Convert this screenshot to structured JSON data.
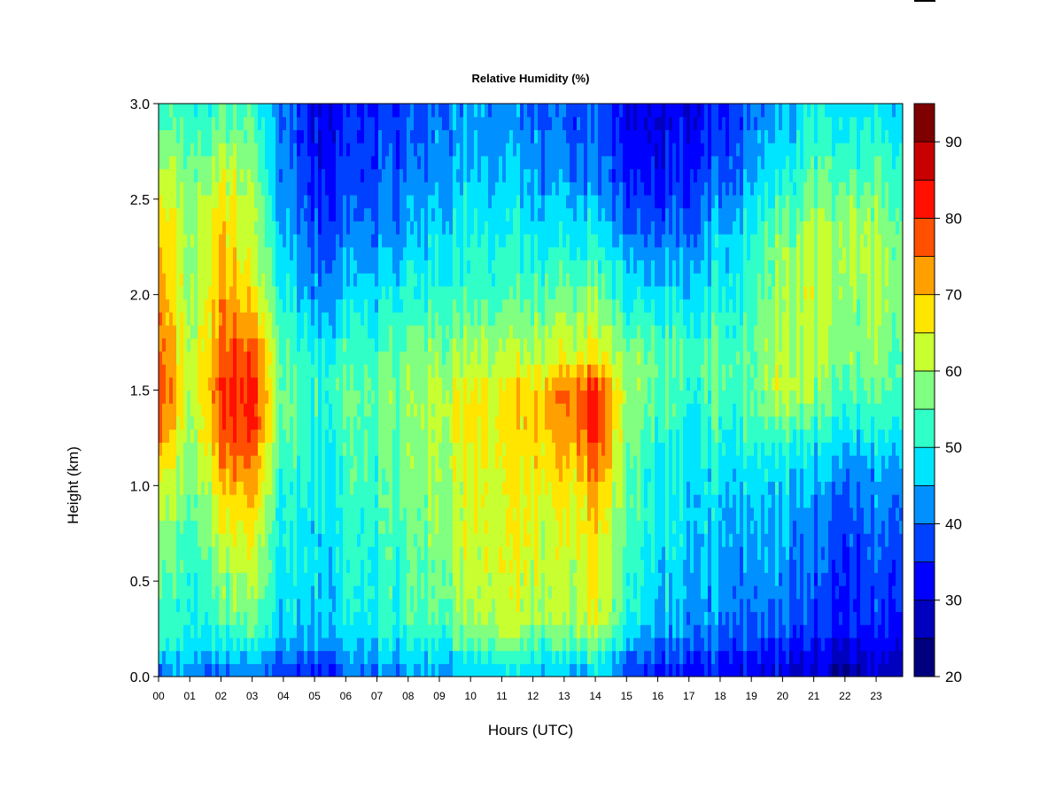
{
  "chart_data": {
    "type": "heatmap",
    "title": "Relative Humidity (%)",
    "xlabel": "Hours (UTC)",
    "ylabel": "Height (km)",
    "xlim": [
      0,
      23.85
    ],
    "ylim": [
      0.0,
      3.0
    ],
    "x_ticks": [
      0,
      1,
      2,
      3,
      4,
      5,
      6,
      7,
      8,
      9,
      10,
      11,
      12,
      13,
      14,
      15,
      16,
      17,
      18,
      19,
      20,
      21,
      22,
      23
    ],
    "x_tick_labels": [
      "00",
      "01",
      "02",
      "03",
      "04",
      "05",
      "06",
      "07",
      "08",
      "09",
      "10",
      "11",
      "12",
      "13",
      "14",
      "15",
      "16",
      "17",
      "18",
      "19",
      "20",
      "21",
      "22",
      "23"
    ],
    "y_ticks": [
      0.0,
      0.5,
      1.0,
      1.5,
      2.0,
      2.5,
      3.0
    ],
    "y_tick_labels": [
      "0.0",
      "0.5",
      "1.0",
      "1.5",
      "2.0",
      "2.5",
      "3.0"
    ],
    "colorbar": {
      "levels": [
        20,
        25,
        30,
        35,
        40,
        45,
        50,
        55,
        60,
        65,
        70,
        75,
        80,
        85,
        90,
        95
      ],
      "colors": [
        "#00007F",
        "#0000BF",
        "#0000FF",
        "#0040FF",
        "#0090FF",
        "#00E5FF",
        "#30FFC8",
        "#80FF80",
        "#C8FF30",
        "#FFE500",
        "#FFA000",
        "#FF5000",
        "#FF1000",
        "#C80000",
        "#7F0000"
      ],
      "tick_values": [
        20,
        30,
        40,
        50,
        60,
        70,
        80,
        90
      ],
      "tick_labels": [
        "20",
        "30",
        "40",
        "50",
        "60",
        "70",
        "80",
        "90"
      ]
    },
    "heights_km": [
      0.0,
      0.1,
      0.2,
      0.3,
      0.5,
      0.7,
      0.9,
      1.1,
      1.3,
      1.5,
      1.7,
      2.0,
      2.3,
      2.6,
      2.9,
      3.0
    ],
    "hours": [
      0.0,
      1.0,
      2.0,
      3.0,
      4.0,
      5.0,
      6.0,
      7.0,
      8.0,
      9.0,
      10.0,
      11.0,
      12.0,
      13.0,
      14.0,
      15.0,
      16.0,
      17.0,
      18.0,
      19.0,
      20.0,
      21.0,
      22.0,
      23.0,
      23.85
    ],
    "rh_values_percent": [
      [
        40,
        42,
        38,
        40,
        35,
        33,
        38,
        40,
        42,
        44,
        46,
        47,
        46,
        43,
        46,
        36,
        33,
        33,
        32,
        30,
        29,
        27,
        26,
        27,
        28
      ],
      [
        48,
        46,
        44,
        46,
        40,
        39,
        42,
        44,
        46,
        48,
        50,
        52,
        50,
        48,
        52,
        42,
        38,
        37,
        36,
        34,
        33,
        30,
        30,
        30,
        32
      ],
      [
        54,
        50,
        50,
        52,
        44,
        44,
        46,
        48,
        50,
        52,
        56,
        58,
        56,
        54,
        60,
        48,
        42,
        42,
        40,
        38,
        37,
        34,
        33,
        33,
        35
      ],
      [
        56,
        50,
        54,
        56,
        46,
        46,
        48,
        50,
        52,
        55,
        60,
        62,
        60,
        58,
        64,
        52,
        45,
        44,
        42,
        40,
        40,
        36,
        35,
        35,
        37
      ],
      [
        58,
        50,
        58,
        60,
        48,
        47,
        49,
        51,
        53,
        57,
        62,
        64,
        62,
        60,
        66,
        54,
        47,
        46,
        44,
        42,
        42,
        38,
        36,
        37,
        39
      ],
      [
        60,
        52,
        62,
        64,
        49,
        48,
        50,
        52,
        54,
        58,
        63,
        64,
        63,
        62,
        67,
        55,
        48,
        47,
        45,
        44,
        44,
        40,
        38,
        39,
        41
      ],
      [
        64,
        54,
        66,
        68,
        50,
        49,
        51,
        53,
        55,
        59,
        64,
        64,
        64,
        63,
        70,
        56,
        49,
        48,
        47,
        46,
        46,
        42,
        40,
        41,
        43
      ],
      [
        70,
        56,
        72,
        74,
        52,
        50,
        52,
        54,
        56,
        60,
        65,
        65,
        66,
        68,
        76,
        57,
        50,
        49,
        49,
        48,
        48,
        46,
        44,
        44,
        46
      ],
      [
        80,
        58,
        78,
        80,
        54,
        51,
        53,
        55,
        57,
        62,
        66,
        66,
        68,
        72,
        82,
        58,
        52,
        50,
        52,
        52,
        55,
        52,
        50,
        50,
        52
      ],
      [
        84,
        60,
        80,
        82,
        56,
        52,
        54,
        56,
        58,
        62,
        67,
        66,
        68,
        74,
        82,
        60,
        55,
        53,
        55,
        55,
        64,
        58,
        56,
        56,
        56
      ],
      [
        80,
        60,
        76,
        78,
        54,
        50,
        52,
        54,
        56,
        58,
        60,
        60,
        60,
        62,
        66,
        58,
        56,
        54,
        55,
        55,
        62,
        60,
        58,
        58,
        58
      ],
      [
        76,
        58,
        72,
        66,
        50,
        42,
        46,
        48,
        50,
        52,
        54,
        54,
        54,
        56,
        58,
        50,
        48,
        48,
        50,
        52,
        60,
        62,
        60,
        60,
        60
      ],
      [
        72,
        58,
        70,
        60,
        46,
        38,
        40,
        42,
        44,
        48,
        50,
        50,
        48,
        48,
        50,
        42,
        40,
        42,
        46,
        50,
        58,
        60,
        62,
        60,
        58
      ],
      [
        66,
        56,
        64,
        58,
        42,
        34,
        36,
        38,
        40,
        44,
        46,
        46,
        44,
        42,
        42,
        36,
        33,
        36,
        40,
        44,
        50,
        54,
        56,
        54,
        54
      ],
      [
        56,
        52,
        56,
        54,
        40,
        32,
        34,
        36,
        38,
        42,
        44,
        42,
        40,
        38,
        40,
        32,
        31,
        32,
        36,
        40,
        46,
        50,
        50,
        50,
        50
      ],
      [
        54,
        50,
        54,
        52,
        40,
        32,
        34,
        36,
        38,
        42,
        44,
        42,
        40,
        38,
        40,
        32,
        31,
        32,
        36,
        40,
        46,
        48,
        48,
        48,
        48
      ]
    ]
  }
}
